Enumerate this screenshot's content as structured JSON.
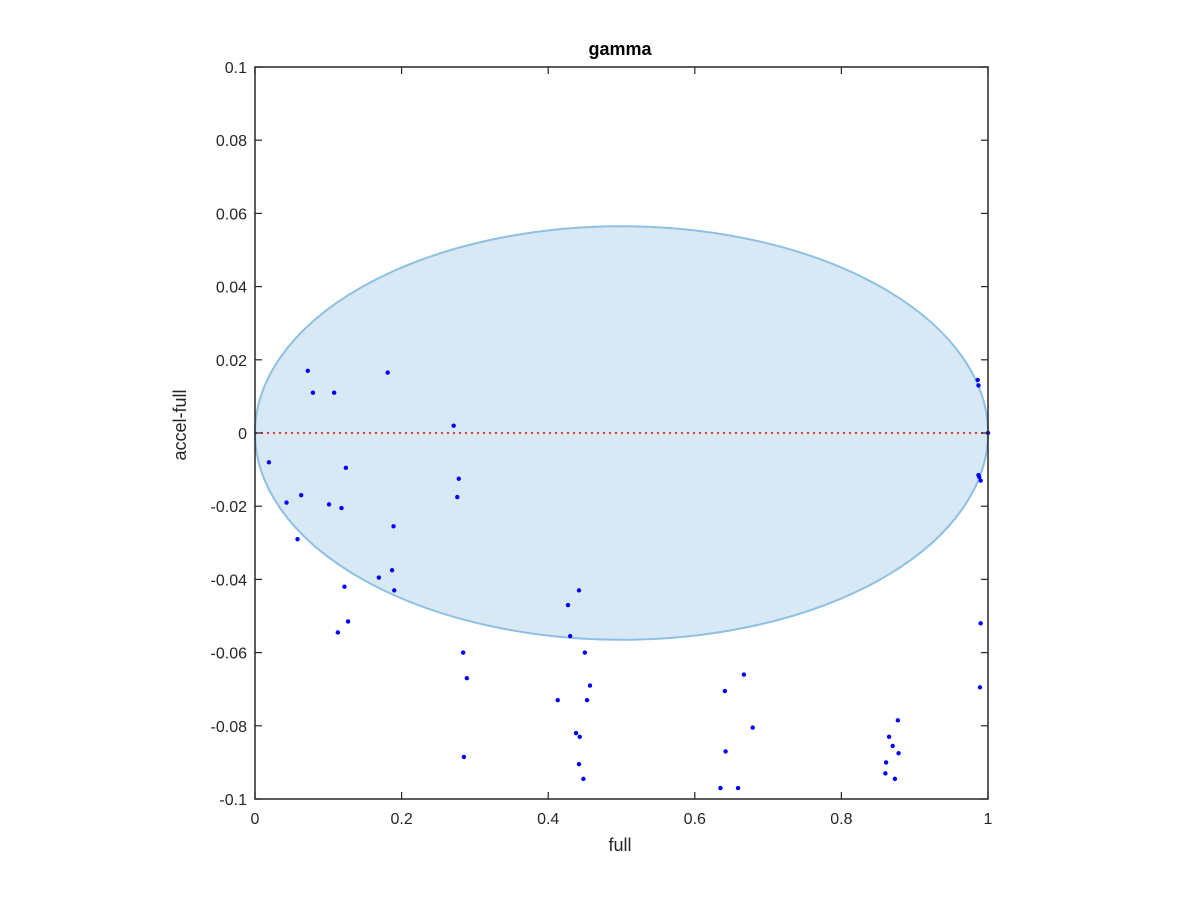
{
  "chart_data": {
    "type": "scatter",
    "title": "gamma",
    "xlabel": "full",
    "ylabel": "accel-full",
    "xlim": [
      0,
      1
    ],
    "ylim": [
      -0.1,
      0.1
    ],
    "xticks": [
      0,
      0.2,
      0.4,
      0.6,
      0.8,
      1
    ],
    "xtick_labels": [
      "0",
      "0.2",
      "0.4",
      "0.6",
      "0.8",
      "1"
    ],
    "yticks": [
      -0.1,
      -0.08,
      -0.06,
      -0.04,
      -0.02,
      0,
      0.02,
      0.04,
      0.06,
      0.08,
      0.1
    ],
    "ytick_labels": [
      "-0.1",
      "-0.08",
      "-0.06",
      "-0.04",
      "-0.02",
      "0",
      "0.02",
      "0.04",
      "0.06",
      "0.08",
      "0.1"
    ],
    "grid": false,
    "colors": {
      "points": "#0000ff",
      "ellipse_fill": "#d8e8f4",
      "ellipse_stroke": "#8ec0e2",
      "reference_line": "#ff3030",
      "axes": "#262626"
    },
    "reference_line": {
      "y": 0,
      "style": "dotted"
    },
    "ellipse": {
      "center": [
        0.5,
        0
      ],
      "semi_axis_x": 0.5,
      "semi_axis_y": 0.0565
    },
    "points": [
      {
        "x": 0.019,
        "y": -0.008
      },
      {
        "x": 0.043,
        "y": -0.019
      },
      {
        "x": 0.058,
        "y": -0.029
      },
      {
        "x": 0.063,
        "y": -0.017
      },
      {
        "x": 0.072,
        "y": 0.017
      },
      {
        "x": 0.079,
        "y": 0.011
      },
      {
        "x": 0.101,
        "y": -0.0195
      },
      {
        "x": 0.108,
        "y": 0.011
      },
      {
        "x": 0.113,
        "y": -0.0545
      },
      {
        "x": 0.118,
        "y": -0.0205
      },
      {
        "x": 0.122,
        "y": -0.042
      },
      {
        "x": 0.124,
        "y": -0.0095
      },
      {
        "x": 0.127,
        "y": -0.0515
      },
      {
        "x": 0.169,
        "y": -0.0395
      },
      {
        "x": 0.181,
        "y": 0.0165
      },
      {
        "x": 0.187,
        "y": -0.0375
      },
      {
        "x": 0.189,
        "y": -0.0255
      },
      {
        "x": 0.19,
        "y": -0.043
      },
      {
        "x": 0.271,
        "y": 0.002
      },
      {
        "x": 0.276,
        "y": -0.0175
      },
      {
        "x": 0.278,
        "y": -0.0125
      },
      {
        "x": 0.284,
        "y": -0.06
      },
      {
        "x": 0.285,
        "y": -0.0885
      },
      {
        "x": 0.289,
        "y": -0.067
      },
      {
        "x": 0.413,
        "y": -0.073
      },
      {
        "x": 0.427,
        "y": -0.047
      },
      {
        "x": 0.43,
        "y": -0.0555
      },
      {
        "x": 0.438,
        "y": -0.082
      },
      {
        "x": 0.442,
        "y": -0.043
      },
      {
        "x": 0.442,
        "y": -0.0905
      },
      {
        "x": 0.443,
        "y": -0.083
      },
      {
        "x": 0.448,
        "y": -0.0945
      },
      {
        "x": 0.45,
        "y": -0.06
      },
      {
        "x": 0.453,
        "y": -0.073
      },
      {
        "x": 0.457,
        "y": -0.069
      },
      {
        "x": 0.635,
        "y": -0.097
      },
      {
        "x": 0.641,
        "y": -0.0705
      },
      {
        "x": 0.642,
        "y": -0.087
      },
      {
        "x": 0.659,
        "y": -0.097
      },
      {
        "x": 0.667,
        "y": -0.066
      },
      {
        "x": 0.679,
        "y": -0.0805
      },
      {
        "x": 0.86,
        "y": -0.093
      },
      {
        "x": 0.861,
        "y": -0.09
      },
      {
        "x": 0.865,
        "y": -0.083
      },
      {
        "x": 0.87,
        "y": -0.0855
      },
      {
        "x": 0.873,
        "y": -0.0945
      },
      {
        "x": 0.877,
        "y": -0.0785
      },
      {
        "x": 0.878,
        "y": -0.0875
      },
      {
        "x": 0.986,
        "y": 0.0145
      },
      {
        "x": 0.987,
        "y": 0.013
      },
      {
        "x": 0.987,
        "y": -0.0115
      },
      {
        "x": 0.988,
        "y": -0.012
      },
      {
        "x": 0.989,
        "y": -0.0695
      },
      {
        "x": 0.99,
        "y": -0.052
      },
      {
        "x": 0.99,
        "y": -0.013
      },
      {
        "x": 1.0,
        "y": 0.0
      }
    ]
  }
}
